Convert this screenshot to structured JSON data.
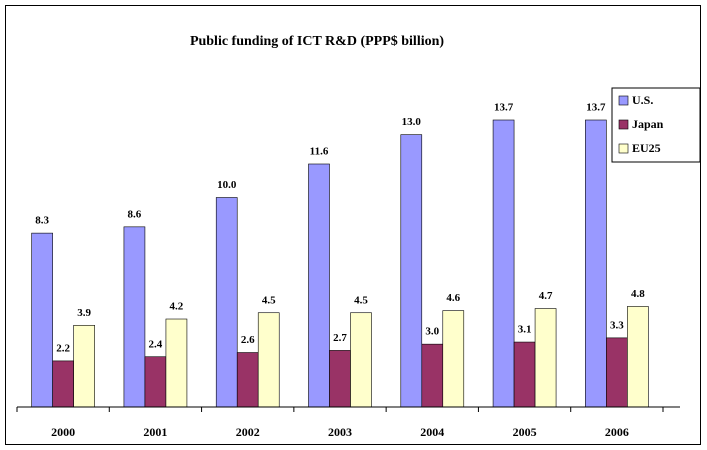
{
  "chart_data": {
    "type": "bar",
    "title": "Public funding of ICT R&D (PPP$ billion)",
    "categories": [
      "2000",
      "2001",
      "2002",
      "2003",
      "2004",
      "2005",
      "2006"
    ],
    "series": [
      {
        "name": "U.S.",
        "color": "#9999ff",
        "values": [
          8.3,
          8.6,
          10.0,
          11.6,
          13.0,
          13.7,
          13.7
        ],
        "value_labels": [
          "8.3",
          "8.6",
          "10.0",
          "11.6",
          "13.0",
          "13.7",
          "13.7"
        ]
      },
      {
        "name": "Japan",
        "color": "#993366",
        "values": [
          2.2,
          2.4,
          2.6,
          2.7,
          3.0,
          3.1,
          3.3
        ],
        "value_labels": [
          "2.2",
          "2.4",
          "2.6",
          "2.7",
          "3.0",
          "3.1",
          "3.3"
        ]
      },
      {
        "name": "EU25",
        "color": "#ffffcc",
        "values": [
          3.9,
          4.2,
          4.5,
          4.5,
          4.6,
          4.7,
          4.8
        ],
        "value_labels": [
          "3.9",
          "4.2",
          "4.5",
          "4.5",
          "4.6",
          "4.7",
          "4.8"
        ]
      }
    ],
    "legend": "right"
  }
}
